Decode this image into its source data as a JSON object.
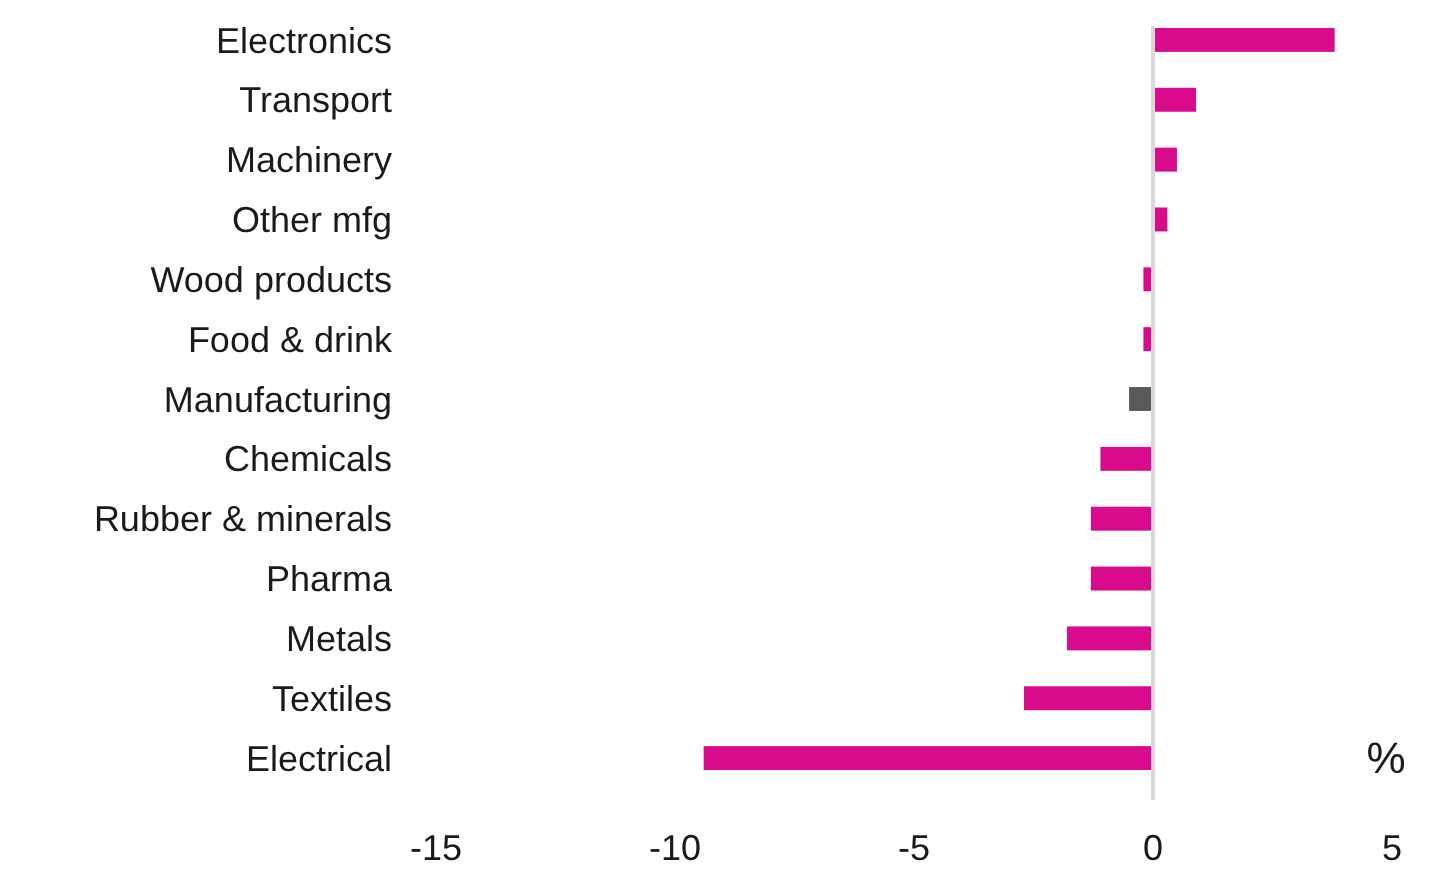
{
  "chart_data": {
    "type": "bar",
    "orientation": "horizontal",
    "xlabel": "%",
    "categories": [
      "Electronics",
      "Transport",
      "Machinery",
      "Other mfg",
      "Wood products",
      "Food & drink",
      "Manufacturing",
      "Chemicals",
      "Rubber & minerals",
      "Pharma",
      "Metals",
      "Textiles",
      "Electrical"
    ],
    "values": [
      3.8,
      0.9,
      0.5,
      0.3,
      -0.2,
      -0.2,
      -0.5,
      -1.1,
      -1.3,
      -1.3,
      -1.8,
      -2.7,
      -9.4
    ],
    "colors": [
      "#d90b8c",
      "#d90b8c",
      "#d90b8c",
      "#d90b8c",
      "#d90b8c",
      "#d90b8c",
      "#595959",
      "#d90b8c",
      "#d90b8c",
      "#d90b8c",
      "#d90b8c",
      "#d90b8c",
      "#d90b8c"
    ],
    "xlim": [
      -15,
      5
    ],
    "xticks": [
      -15,
      -10,
      -5,
      0,
      5
    ]
  }
}
